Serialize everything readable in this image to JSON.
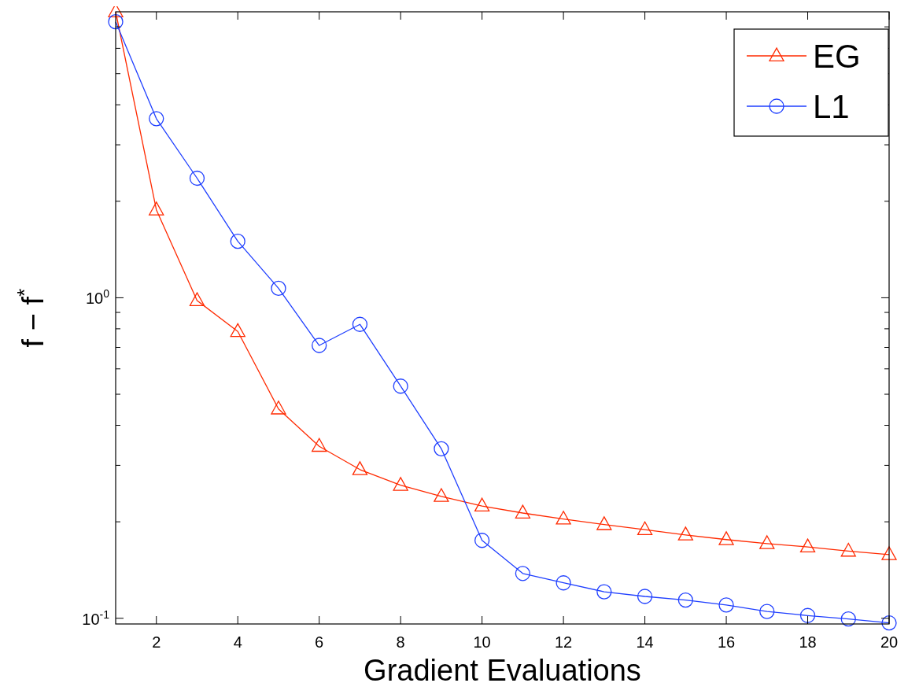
{
  "chart_data": {
    "type": "line",
    "xlabel": "Gradient Evaluations",
    "ylabel": "f − f$^{*}$",
    "x": [
      1,
      2,
      3,
      4,
      5,
      6,
      7,
      8,
      9,
      10,
      11,
      12,
      13,
      14,
      15,
      16,
      17,
      18,
      19,
      20
    ],
    "series": [
      {
        "name": "EG",
        "color": "#ff2a00",
        "marker": "triangle",
        "values": [
          7.8,
          1.88,
          0.98,
          0.785,
          0.45,
          0.344,
          0.291,
          0.26,
          0.24,
          0.224,
          0.213,
          0.204,
          0.196,
          0.189,
          0.182,
          0.176,
          0.171,
          0.167,
          0.162,
          0.158
        ]
      },
      {
        "name": "L1",
        "color": "#1f3fff",
        "marker": "circle",
        "values": [
          7.26,
          3.62,
          2.36,
          1.5,
          1.07,
          0.71,
          0.826,
          0.53,
          0.338,
          0.175,
          0.138,
          0.129,
          0.121,
          0.117,
          0.114,
          0.11,
          0.105,
          0.102,
          0.0995,
          0.0967
        ]
      }
    ],
    "log": "y",
    "xlim": [
      1,
      20
    ],
    "xticks": [
      2,
      4,
      6,
      8,
      10,
      12,
      14,
      16,
      18,
      20
    ],
    "ylim": [
      0.096,
      7.8
    ],
    "yticks": [
      {
        "value": 0.1,
        "label": "10$^{-1}$"
      },
      {
        "value": 0.2,
        "label": null
      },
      {
        "value": 0.3,
        "label": null
      },
      {
        "value": 0.4,
        "label": null
      },
      {
        "value": 0.5,
        "label": null
      },
      {
        "value": 0.6,
        "label": null
      },
      {
        "value": 0.7,
        "label": null
      },
      {
        "value": 0.8,
        "label": null
      },
      {
        "value": 0.9,
        "label": null
      },
      {
        "value": 1,
        "label": "10$^{0}$"
      },
      {
        "value": 2,
        "label": null
      },
      {
        "value": 3,
        "label": null
      },
      {
        "value": 4,
        "label": null
      },
      {
        "value": 5,
        "label": null
      },
      {
        "value": 6,
        "label": null
      },
      {
        "value": 7,
        "label": null
      }
    ],
    "grid": false,
    "legend": "top right",
    "line_style": "solid"
  }
}
